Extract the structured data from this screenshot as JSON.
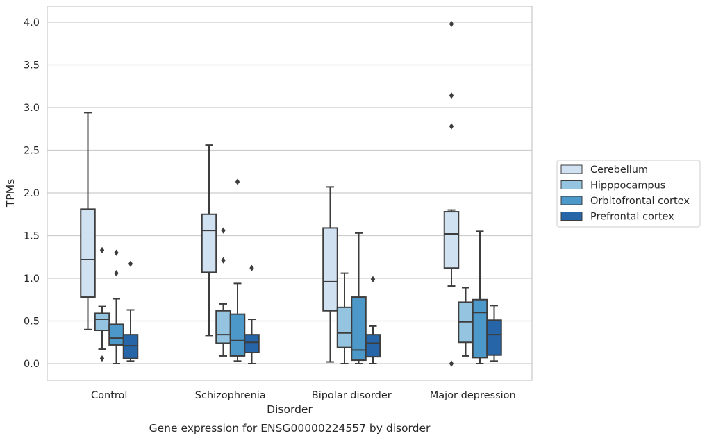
{
  "chart_data": {
    "type": "boxplot",
    "title": "",
    "caption": "Gene expression for ENSG00000224557 by disorder",
    "xlabel": "Disorder",
    "ylabel": "TPMs",
    "ylim": [
      -0.19,
      4.19
    ],
    "yticks": [
      "0.0",
      "0.5",
      "1.0",
      "1.5",
      "2.0",
      "2.5",
      "3.0",
      "3.5",
      "4.0"
    ],
    "grid": "horizontal",
    "legend_position": "center-right",
    "categories": [
      "Control",
      "Schizophrenia",
      "Bipolar disorder",
      "Major depression"
    ],
    "series": [
      {
        "name": "Cerebellum",
        "color": "#d0e1f2",
        "boxes": [
          {
            "whislo": 0.4,
            "q1": 0.78,
            "med": 1.22,
            "q3": 1.81,
            "whishi": 2.94,
            "fliers": []
          },
          {
            "whislo": 0.33,
            "q1": 1.07,
            "med": 1.56,
            "q3": 1.75,
            "whishi": 2.56,
            "fliers": []
          },
          {
            "whislo": 0.02,
            "q1": 0.62,
            "med": 0.96,
            "q3": 1.59,
            "whishi": 2.07,
            "fliers": []
          },
          {
            "whislo": 0.91,
            "q1": 1.12,
            "med": 1.52,
            "q3": 1.78,
            "whishi": 1.8,
            "fliers": [
              2.78,
              3.14,
              3.98,
              0.0
            ]
          }
        ]
      },
      {
        "name": "Hipppocampus",
        "color": "#94c4df",
        "boxes": [
          {
            "whislo": 0.17,
            "q1": 0.39,
            "med": 0.52,
            "q3": 0.59,
            "whishi": 0.67,
            "fliers": [
              0.06,
              1.33
            ]
          },
          {
            "whislo": 0.09,
            "q1": 0.24,
            "med": 0.34,
            "q3": 0.62,
            "whishi": 0.7,
            "fliers": [
              1.21,
              1.56
            ]
          },
          {
            "whislo": 0.0,
            "q1": 0.19,
            "med": 0.36,
            "q3": 0.66,
            "whishi": 1.06,
            "fliers": []
          },
          {
            "whislo": 0.09,
            "q1": 0.25,
            "med": 0.49,
            "q3": 0.72,
            "whishi": 0.89,
            "fliers": []
          }
        ]
      },
      {
        "name": "Orbitofrontal cortex",
        "color": "#4b98c9",
        "boxes": [
          {
            "whislo": 0.0,
            "q1": 0.22,
            "med": 0.3,
            "q3": 0.46,
            "whishi": 0.76,
            "fliers": [
              1.06,
              1.3
            ]
          },
          {
            "whislo": 0.03,
            "q1": 0.09,
            "med": 0.27,
            "q3": 0.58,
            "whishi": 0.94,
            "fliers": [
              2.13
            ]
          },
          {
            "whislo": 0.0,
            "q1": 0.04,
            "med": 0.16,
            "q3": 0.78,
            "whishi": 1.53,
            "fliers": []
          },
          {
            "whislo": 0.0,
            "q1": 0.07,
            "med": 0.6,
            "q3": 0.75,
            "whishi": 1.55,
            "fliers": []
          }
        ]
      },
      {
        "name": "Prefrontal cortex",
        "color": "#2565a8",
        "boxes": [
          {
            "whislo": 0.03,
            "q1": 0.06,
            "med": 0.21,
            "q3": 0.34,
            "whishi": 0.63,
            "fliers": [
              1.17
            ]
          },
          {
            "whislo": 0.0,
            "q1": 0.13,
            "med": 0.25,
            "q3": 0.34,
            "whishi": 0.52,
            "fliers": [
              1.12
            ]
          },
          {
            "whislo": 0.0,
            "q1": 0.08,
            "med": 0.24,
            "q3": 0.34,
            "whishi": 0.44,
            "fliers": [
              0.99
            ]
          },
          {
            "whislo": 0.03,
            "q1": 0.1,
            "med": 0.34,
            "q3": 0.51,
            "whishi": 0.68,
            "fliers": []
          }
        ]
      }
    ]
  }
}
